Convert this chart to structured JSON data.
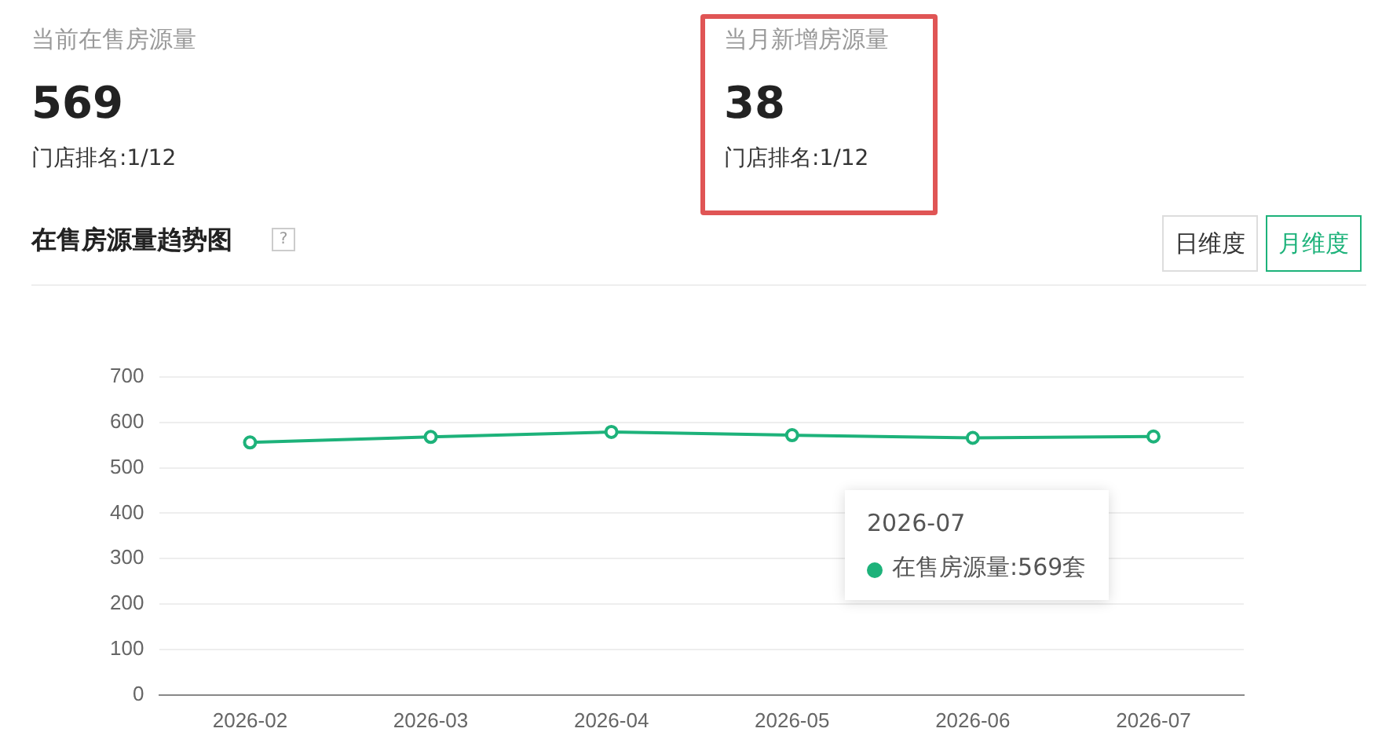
{
  "chart_data": {
    "type": "line",
    "title": "在售房源量趋势图",
    "categories": [
      "2026-02",
      "2026-03",
      "2026-04",
      "2026-05",
      "2026-06",
      "2026-07"
    ],
    "series": [
      {
        "color": "#1db27a",
        "values": [
          556,
          568,
          579,
          572,
          566,
          569
        ]
      }
    ],
    "ylim": [
      0,
      700
    ],
    "yticks": [
      0,
      100,
      200,
      300,
      400,
      500,
      600,
      700
    ],
    "grid": "y",
    "legend": false,
    "marker": "circle",
    "line_style": "solid",
    "annotations": [
      "当前在售房源量",
      "569",
      "门店排名:1/12",
      "当月新增房源量",
      "38",
      "门店排名:1/12",
      "日维度",
      "月维度",
      "2026-07",
      "在售房源量:569套",
      "?"
    ]
  }
}
